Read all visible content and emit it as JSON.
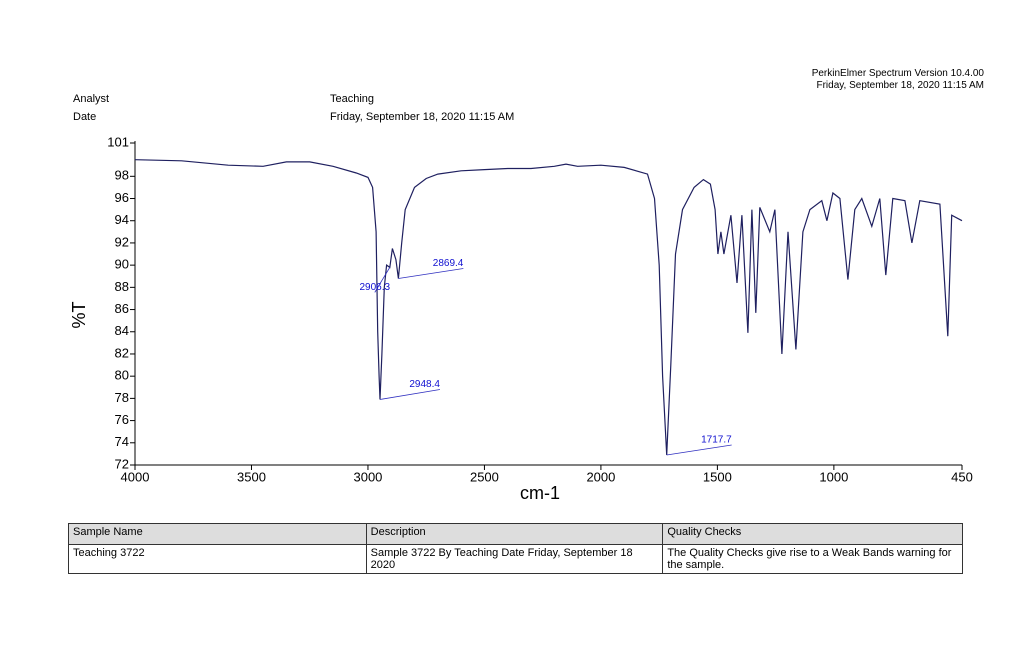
{
  "header": {
    "software": "PerkinElmer Spectrum Version 10.4.00",
    "timestamp": "Friday, September 18, 2020 11:15 AM",
    "analyst_label": "Analyst",
    "analyst": "Teaching",
    "date_label": "Date",
    "date": "Friday, September 18, 2020 11:15 AM"
  },
  "chart_data": {
    "type": "line",
    "xlabel": "cm-1",
    "ylabel": "%T",
    "xlim": [
      4000,
      450
    ],
    "xticks": [
      4000,
      3500,
      3000,
      2500,
      2000,
      1500,
      1000,
      450
    ],
    "ylim": [
      72,
      101
    ],
    "yticks": [
      72,
      74,
      76,
      78,
      80,
      82,
      84,
      86,
      88,
      90,
      92,
      94,
      96,
      98,
      101
    ],
    "x": [
      4000,
      3800,
      3600,
      3450,
      3350,
      3250,
      3150,
      3050,
      3000,
      2980,
      2965,
      2958,
      2952,
      2948.4,
      2940,
      2930,
      2920,
      2906.3,
      2895,
      2880,
      2869.4,
      2855,
      2840,
      2800,
      2750,
      2700,
      2600,
      2500,
      2400,
      2300,
      2200,
      2150,
      2100,
      2000,
      1900,
      1800,
      1770,
      1750,
      1735,
      1717.7,
      1700,
      1680,
      1650,
      1600,
      1560,
      1530,
      1510,
      1498,
      1485,
      1472,
      1442,
      1416,
      1395,
      1369,
      1352,
      1335,
      1318,
      1275,
      1253,
      1223,
      1197,
      1163,
      1133,
      1103,
      1052,
      1030,
      1004,
      974,
      940,
      910,
      880,
      837,
      803,
      777,
      747,
      695,
      665,
      631,
      545,
      511,
      494,
      450
    ],
    "series": [
      {
        "name": "Teaching 3722",
        "color": "#1f2060",
        "values": [
          99.5,
          99.4,
          99.0,
          98.9,
          99.3,
          99.3,
          98.9,
          98.3,
          97.9,
          97.0,
          93.0,
          84,
          80,
          77.9,
          82,
          88,
          90.0,
          89.8,
          91.5,
          90.5,
          88.8,
          92,
          95,
          97,
          97.8,
          98.2,
          98.5,
          98.6,
          98.7,
          98.7,
          98.9,
          99.1,
          98.9,
          99.0,
          98.8,
          98.2,
          96,
          90,
          80,
          72.9,
          81,
          91,
          95,
          97,
          97.7,
          97.3,
          95,
          91,
          93,
          91.0,
          94.5,
          88.4,
          94.5,
          83.9,
          95,
          85.7,
          95.2,
          93,
          95,
          82,
          93,
          82.4,
          93,
          95,
          95.8,
          94,
          96.5,
          96,
          88.7,
          95,
          96,
          93.5,
          96,
          89.1,
          96,
          95.8,
          92,
          95.8,
          95.5,
          83.6,
          94.5,
          94.0
        ]
      }
    ],
    "peaks": [
      {
        "x": 2869.4,
        "y": 88.8
      },
      {
        "x": 2906.3,
        "y": 89.8
      },
      {
        "x": 2948.4,
        "y": 77.9
      },
      {
        "x": 1717.7,
        "y": 72.9
      }
    ]
  },
  "table": {
    "headers": [
      "Sample Name",
      "Description",
      "Quality Checks"
    ],
    "rows": [
      [
        "Teaching 3722",
        "Sample 3722 By Teaching Date Friday, September 18 2020",
        "The Quality Checks give rise to a Weak Bands warning for the sample."
      ]
    ]
  }
}
